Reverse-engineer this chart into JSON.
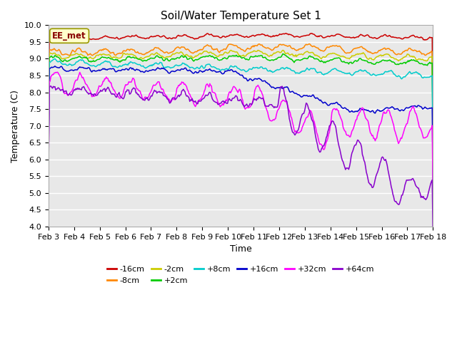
{
  "title": "Soil/Water Temperature Set 1",
  "xlabel": "Time",
  "ylabel": "Temperature (C)",
  "ylim": [
    4.0,
    10.0
  ],
  "yticks": [
    4.0,
    4.5,
    5.0,
    5.5,
    6.0,
    6.5,
    7.0,
    7.5,
    8.0,
    8.5,
    9.0,
    9.5,
    10.0
  ],
  "xtick_labels": [
    "Feb 3",
    "Feb 4",
    "Feb 5",
    "Feb 6",
    "Feb 7",
    "Feb 8",
    "Feb 9",
    "Feb 10",
    "Feb 11",
    "Feb 12",
    "Feb 13",
    "Feb 14",
    "Feb 15",
    "Feb 16",
    "Feb 17",
    "Feb 18"
  ],
  "series_order": [
    "-16cm",
    "-8cm",
    "-2cm",
    "+2cm",
    "+8cm",
    "+16cm",
    "+32cm",
    "+64cm"
  ],
  "series_colors": {
    "-16cm": "#cc0000",
    "-8cm": "#ff8800",
    "-2cm": "#cccc00",
    "+2cm": "#00cc00",
    "+8cm": "#00cccc",
    "+16cm": "#0000cc",
    "+32cm": "#ff00ff",
    "+64cm": "#8800cc"
  },
  "annotation_text": "EE_met",
  "annotation_bg": "#ffffcc",
  "annotation_border": "#999900",
  "fig_bg": "#ffffff",
  "plot_bg": "#e8e8e8",
  "grid_color": "#ffffff",
  "title_fontsize": 11,
  "tick_fontsize": 8,
  "label_fontsize": 9,
  "legend_fontsize": 8
}
